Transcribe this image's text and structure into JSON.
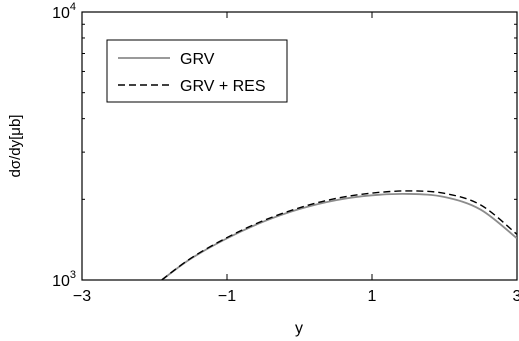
{
  "chart_data": {
    "type": "line",
    "title": "",
    "xlabel": "y",
    "ylabel": "dσ/dy[μb]",
    "xlim": [
      -3,
      3
    ],
    "ylim": [
      1000,
      10000
    ],
    "yscale": "log",
    "grid": false,
    "legend_position": "top-left",
    "x_ticks": [
      {
        "value": -3,
        "label": "−3"
      },
      {
        "value": -1,
        "label": "−1"
      },
      {
        "value": 1,
        "label": "1"
      },
      {
        "value": 3,
        "label": "3"
      }
    ],
    "y_ticks": [
      {
        "value": 1000,
        "base": "10",
        "exp": "3"
      },
      {
        "value": 10000,
        "base": "10",
        "exp": "4"
      }
    ],
    "series": [
      {
        "name": "GRV",
        "style": "solid",
        "color": "#8c8c8c",
        "x": [
          -1.9,
          -1.5,
          -1.0,
          -0.5,
          0.0,
          0.5,
          1.0,
          1.5,
          2.0,
          2.5,
          3.0
        ],
        "y": [
          1000,
          1200,
          1430,
          1650,
          1840,
          1985,
          2070,
          2095,
          2040,
          1830,
          1430
        ]
      },
      {
        "name": "GRV + RES",
        "style": "dashed",
        "color": "#000000",
        "x": [
          -1.9,
          -1.5,
          -1.0,
          -0.5,
          0.0,
          0.5,
          1.0,
          1.5,
          2.0,
          2.5,
          3.0
        ],
        "y": [
          1000,
          1205,
          1440,
          1665,
          1860,
          2015,
          2110,
          2150,
          2105,
          1905,
          1480
        ]
      }
    ]
  }
}
